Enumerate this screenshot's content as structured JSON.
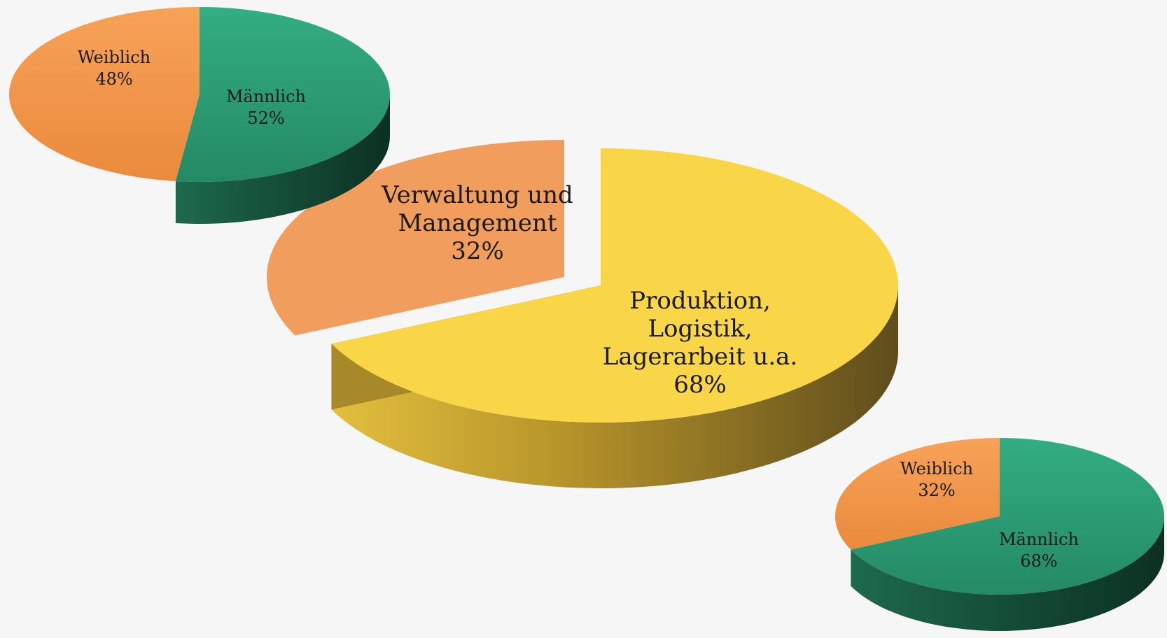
{
  "chart_data": [
    {
      "type": "pie",
      "id": "departments",
      "title": "",
      "categories": [
        "Verwaltung und Management",
        "Produktion, Logistik, Lagerarbeit u.a."
      ],
      "values": [
        32,
        68
      ],
      "labels": [
        {
          "lines": [
            "Verwaltung und",
            "Management",
            "32%"
          ]
        },
        {
          "lines": [
            "Produktion,",
            "Logistik,",
            "Lagerarbeit u.a.",
            "68%"
          ]
        }
      ],
      "colors": [
        "#f09d5d",
        "#f9d548"
      ],
      "exploded": "Verwaltung und Management",
      "legend": "none"
    },
    {
      "type": "pie",
      "id": "gender-verwaltung",
      "title": "",
      "categories": [
        "Weiblich",
        "Männlich"
      ],
      "values": [
        48,
        52
      ],
      "labels": [
        {
          "lines": [
            "Weiblich",
            "48%"
          ]
        },
        {
          "lines": [
            "Männlich",
            "52%"
          ]
        }
      ],
      "colors": [
        "#f59a4c",
        "#2ea77c"
      ],
      "legend": "none"
    },
    {
      "type": "pie",
      "id": "gender-produktion",
      "title": "",
      "categories": [
        "Weiblich",
        "Männlich"
      ],
      "values": [
        32,
        68
      ],
      "labels": [
        {
          "lines": [
            "Weiblich",
            "32%"
          ]
        },
        {
          "lines": [
            "Männlich",
            "68%"
          ]
        }
      ],
      "colors": [
        "#f59a4c",
        "#2ea77c"
      ],
      "legend": "none"
    }
  ]
}
